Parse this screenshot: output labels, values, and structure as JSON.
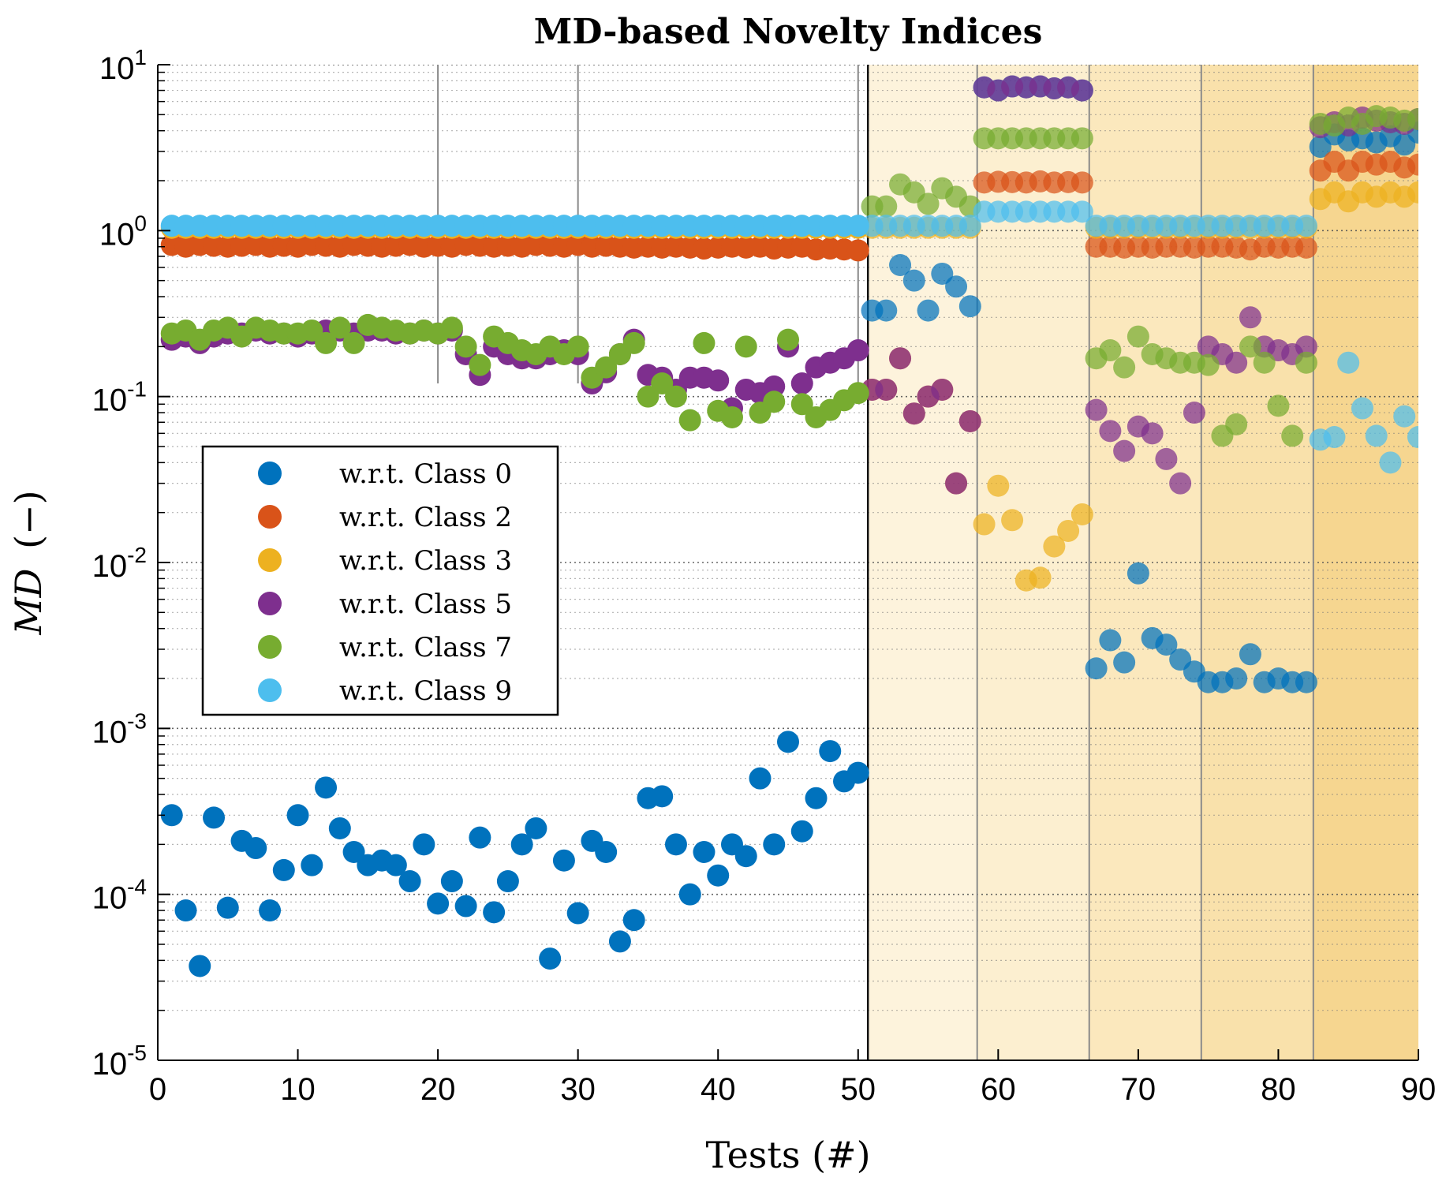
{
  "chart_data": {
    "type": "scatter",
    "title": "MD-based Novelty Indices",
    "xlabel": "Tests (#)",
    "ylabel_symbol": "MD",
    "ylabel_unit": "(−)",
    "xlim": [
      0,
      90
    ],
    "ylim": [
      1e-05,
      10
    ],
    "yscale": "log",
    "x_ticks": [
      "0",
      "10",
      "20",
      "30",
      "40",
      "50",
      "60",
      "70",
      "80",
      "90"
    ],
    "y_ticks": [
      {
        "base": "10",
        "exp": "1"
      },
      {
        "base": "10",
        "exp": "0"
      },
      {
        "base": "10",
        "exp": "-1"
      },
      {
        "base": "10",
        "exp": "-2"
      },
      {
        "base": "10",
        "exp": "-3"
      },
      {
        "base": "10",
        "exp": "-4"
      },
      {
        "base": "10",
        "exp": "-5"
      }
    ],
    "legend_position": "left-middle",
    "shaded_regions": [
      {
        "x0": 50.7,
        "x1": 58.5,
        "color": "#fdf3dc"
      },
      {
        "x0": 58.5,
        "x1": 66.5,
        "color": "#fcefd0"
      },
      {
        "x0": 66.5,
        "x1": 74.5,
        "color": "#fbe8bd"
      },
      {
        "x0": 74.5,
        "x1": 82.5,
        "color": "#f9e1ab"
      },
      {
        "x0": 82.5,
        "x1": 90,
        "color": "#f6d690"
      }
    ],
    "vertical_lines": [
      20,
      30,
      50,
      50.7,
      58.5,
      66.5,
      74.5,
      82.5
    ],
    "x": [
      1,
      2,
      3,
      4,
      5,
      6,
      7,
      8,
      9,
      10,
      11,
      12,
      13,
      14,
      15,
      16,
      17,
      18,
      19,
      20,
      21,
      22,
      23,
      24,
      25,
      26,
      27,
      28,
      29,
      30,
      31,
      32,
      33,
      34,
      35,
      36,
      37,
      38,
      39,
      40,
      41,
      42,
      43,
      44,
      45,
      46,
      47,
      48,
      49,
      50,
      51,
      52,
      53,
      54,
      55,
      56,
      57,
      58,
      59,
      60,
      61,
      62,
      63,
      64,
      65,
      66,
      67,
      68,
      69,
      70,
      71,
      72,
      73,
      74,
      75,
      76,
      77,
      78,
      79,
      80,
      81,
      82,
      83,
      84,
      85,
      86,
      87,
      88,
      89,
      90
    ],
    "series": [
      {
        "name": "w.r.t. Class 0",
        "color": "#0072bd",
        "values": [
          0.0003,
          8e-05,
          3.7e-05,
          0.00029,
          8.3e-05,
          0.00021,
          0.00019,
          8e-05,
          0.00014,
          0.0003,
          0.00015,
          0.00044,
          0.00025,
          0.00018,
          0.00015,
          0.00016,
          0.00015,
          0.00012,
          0.0002,
          8.8e-05,
          0.00012,
          8.5e-05,
          0.00022,
          7.8e-05,
          0.00012,
          0.0002,
          0.00025,
          4.1e-05,
          0.00016,
          7.7e-05,
          0.00021,
          0.00018,
          5.2e-05,
          7e-05,
          0.00038,
          0.00039,
          0.0002,
          0.0001,
          0.00018,
          0.00013,
          0.0002,
          0.00017,
          0.0005,
          0.0002,
          0.00083,
          0.00024,
          0.00038,
          0.00073,
          0.00048,
          0.00054,
          0.33,
          0.33,
          0.62,
          0.5,
          0.33,
          0.55,
          0.46,
          0.35,
          7.3,
          7.0,
          7.4,
          7.3,
          7.4,
          7.2,
          7.3,
          7.0,
          0.0023,
          0.0034,
          0.0025,
          0.0086,
          0.0035,
          0.0032,
          0.0026,
          0.0022,
          0.0019,
          0.0019,
          0.002,
          0.0028,
          0.0019,
          0.002,
          0.0019,
          0.0019,
          3.2,
          3.8,
          3.5,
          3.6,
          3.4,
          3.7,
          3.3,
          3.9
        ]
      },
      {
        "name": "w.r.t. Class 2",
        "color": "#d95319",
        "values": [
          0.82,
          0.8,
          0.82,
          0.81,
          0.8,
          0.81,
          0.82,
          0.8,
          0.81,
          0.8,
          0.82,
          0.81,
          0.8,
          0.82,
          0.81,
          0.8,
          0.81,
          0.82,
          0.8,
          0.81,
          0.8,
          0.82,
          0.81,
          0.8,
          0.81,
          0.8,
          0.82,
          0.81,
          0.8,
          0.82,
          0.8,
          0.81,
          0.8,
          0.79,
          0.8,
          0.79,
          0.8,
          0.79,
          0.78,
          0.79,
          0.8,
          0.79,
          0.8,
          0.78,
          0.79,
          0.8,
          0.77,
          0.78,
          0.77,
          0.76,
          0.11,
          0.11,
          0.17,
          0.079,
          0.1,
          0.11,
          0.03,
          0.071,
          1.95,
          1.97,
          1.96,
          1.95,
          1.98,
          1.95,
          1.96,
          1.95,
          0.8,
          0.8,
          0.79,
          0.8,
          0.79,
          0.8,
          0.8,
          0.79,
          0.8,
          0.8,
          0.79,
          0.77,
          0.8,
          0.79,
          0.8,
          0.79,
          2.3,
          2.6,
          2.3,
          2.6,
          2.5,
          2.6,
          2.4,
          2.5
        ]
      },
      {
        "name": "w.r.t. Class 3",
        "color": "#edb120",
        "values": [
          1.04,
          1.04,
          1.04,
          1.04,
          1.04,
          1.04,
          1.04,
          1.04,
          1.04,
          1.04,
          1.04,
          1.04,
          1.04,
          1.04,
          1.04,
          1.04,
          1.04,
          1.04,
          1.04,
          1.04,
          1.04,
          1.04,
          1.04,
          1.04,
          1.04,
          1.04,
          1.04,
          1.04,
          1.04,
          1.04,
          1.04,
          1.04,
          1.04,
          1.04,
          1.04,
          1.04,
          1.04,
          1.04,
          1.04,
          1.04,
          1.04,
          1.04,
          1.04,
          1.04,
          1.04,
          1.04,
          1.04,
          1.04,
          1.04,
          1.04,
          1.04,
          1.04,
          1.04,
          1.04,
          1.04,
          1.04,
          1.04,
          1.04,
          0.017,
          0.029,
          0.018,
          0.0078,
          0.0081,
          0.0125,
          0.0155,
          0.0195,
          1.04,
          1.04,
          1.04,
          1.04,
          1.04,
          1.04,
          1.04,
          1.04,
          1.04,
          1.04,
          1.04,
          1.04,
          1.04,
          1.04,
          1.04,
          1.04,
          1.55,
          1.7,
          1.5,
          1.7,
          1.6,
          1.7,
          1.6,
          1.7
        ]
      },
      {
        "name": "w.r.t. Class 5",
        "color": "#7e2f8e",
        "values": [
          0.22,
          0.23,
          0.21,
          0.23,
          0.24,
          0.24,
          0.25,
          0.24,
          0.24,
          0.23,
          0.24,
          0.25,
          0.25,
          0.24,
          0.25,
          0.25,
          0.24,
          0.24,
          0.25,
          0.24,
          0.25,
          0.18,
          0.135,
          0.2,
          0.18,
          0.17,
          0.17,
          0.18,
          0.19,
          0.18,
          0.12,
          0.14,
          0.18,
          0.22,
          0.135,
          0.13,
          0.11,
          0.13,
          0.13,
          0.125,
          0.085,
          0.11,
          0.105,
          0.115,
          0.2,
          0.12,
          0.15,
          0.16,
          0.17,
          0.19,
          0.11,
          0.11,
          0.17,
          0.079,
          0.1,
          0.11,
          0.03,
          0.071,
          7.3,
          7.0,
          7.4,
          7.3,
          7.4,
          7.2,
          7.3,
          7.0,
          0.083,
          0.062,
          0.047,
          0.066,
          0.06,
          0.042,
          0.03,
          0.08,
          0.2,
          0.18,
          0.16,
          0.3,
          0.2,
          0.19,
          0.18,
          0.2,
          4.2,
          4.5,
          4.3,
          4.8,
          4.6,
          4.5,
          4.4,
          4.7
        ]
      },
      {
        "name": "w.r.t. Class 7",
        "color": "#77ac30",
        "values": [
          0.24,
          0.25,
          0.22,
          0.25,
          0.26,
          0.23,
          0.26,
          0.25,
          0.24,
          0.24,
          0.25,
          0.21,
          0.26,
          0.21,
          0.27,
          0.26,
          0.25,
          0.24,
          0.25,
          0.24,
          0.26,
          0.2,
          0.155,
          0.23,
          0.21,
          0.19,
          0.18,
          0.2,
          0.18,
          0.2,
          0.13,
          0.15,
          0.18,
          0.21,
          0.1,
          0.12,
          0.1,
          0.072,
          0.21,
          0.082,
          0.075,
          0.2,
          0.08,
          0.093,
          0.22,
          0.09,
          0.075,
          0.083,
          0.095,
          0.105,
          1.4,
          1.4,
          1.9,
          1.7,
          1.45,
          1.8,
          1.6,
          1.4,
          3.6,
          3.6,
          3.6,
          3.6,
          3.6,
          3.6,
          3.6,
          3.6,
          0.17,
          0.19,
          0.15,
          0.23,
          0.18,
          0.17,
          0.16,
          0.16,
          0.155,
          0.058,
          0.068,
          0.2,
          0.16,
          0.088,
          0.058,
          0.16,
          4.4,
          4.3,
          4.8,
          4.4,
          4.9,
          4.8,
          4.6,
          4.7
        ]
      },
      {
        "name": "w.r.t. Class 9",
        "color": "#4dbeee",
        "values": [
          1.07,
          1.07,
          1.07,
          1.07,
          1.07,
          1.07,
          1.07,
          1.07,
          1.07,
          1.07,
          1.07,
          1.07,
          1.07,
          1.07,
          1.07,
          1.07,
          1.07,
          1.07,
          1.07,
          1.07,
          1.07,
          1.07,
          1.07,
          1.07,
          1.07,
          1.07,
          1.07,
          1.07,
          1.07,
          1.07,
          1.07,
          1.07,
          1.07,
          1.07,
          1.07,
          1.07,
          1.07,
          1.07,
          1.07,
          1.07,
          1.07,
          1.07,
          1.07,
          1.07,
          1.07,
          1.07,
          1.07,
          1.07,
          1.07,
          1.07,
          1.07,
          1.07,
          1.07,
          1.07,
          1.07,
          1.07,
          1.07,
          1.07,
          1.3,
          1.3,
          1.3,
          1.3,
          1.3,
          1.3,
          1.3,
          1.3,
          1.07,
          1.07,
          1.07,
          1.07,
          1.07,
          1.07,
          1.07,
          1.07,
          1.07,
          1.07,
          1.07,
          1.07,
          1.07,
          1.07,
          1.07,
          1.07,
          0.055,
          0.057,
          0.16,
          0.085,
          0.058,
          0.04,
          0.076,
          0.057
        ]
      }
    ]
  }
}
